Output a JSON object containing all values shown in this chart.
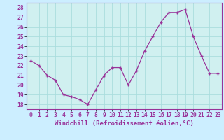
{
  "x": [
    0,
    1,
    2,
    3,
    4,
    5,
    6,
    7,
    8,
    9,
    10,
    11,
    12,
    13,
    14,
    15,
    16,
    17,
    18,
    19,
    20,
    21,
    22,
    23
  ],
  "y": [
    22.5,
    22.0,
    21.0,
    20.5,
    19.0,
    18.8,
    18.5,
    18.0,
    19.5,
    21.0,
    21.8,
    21.8,
    20.0,
    21.5,
    23.5,
    25.0,
    26.5,
    27.5,
    27.5,
    27.8,
    25.0,
    23.0,
    21.2,
    21.2
  ],
  "xlabel": "Windchill (Refroidissement éolien,°C)",
  "xlim": [
    -0.5,
    23.5
  ],
  "ylim": [
    17.5,
    28.5
  ],
  "yticks": [
    18,
    19,
    20,
    21,
    22,
    23,
    24,
    25,
    26,
    27,
    28
  ],
  "xticks": [
    0,
    1,
    2,
    3,
    4,
    5,
    6,
    7,
    8,
    9,
    10,
    11,
    12,
    13,
    14,
    15,
    16,
    17,
    18,
    19,
    20,
    21,
    22,
    23
  ],
  "line_color": "#993399",
  "marker": "+",
  "bg_color": "#cceeff",
  "plot_bg": "#d0f0f0",
  "grid_color": "#aadddd",
  "border_color": "#993399",
  "label_fontsize": 6.5,
  "tick_fontsize": 5.8
}
